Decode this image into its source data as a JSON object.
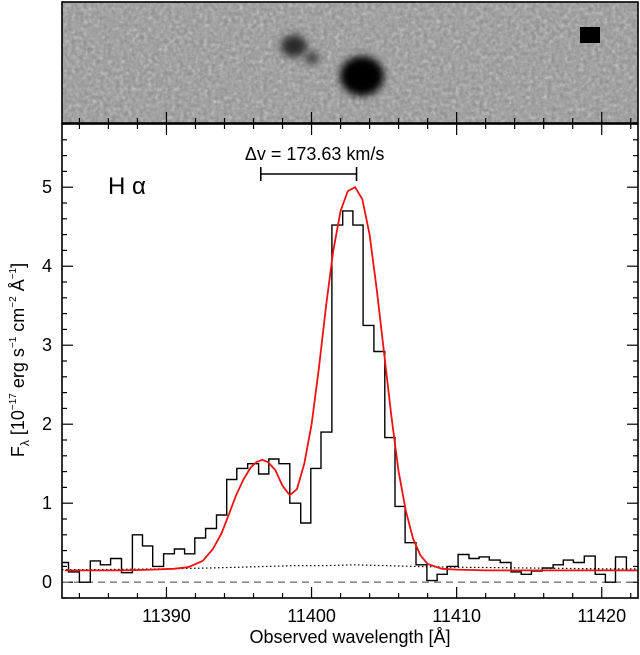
{
  "chart_data": {
    "type": "line",
    "ylabel_main": "F",
    "ylabel_sub": "λ",
    "ylabel_rest_1": " [10",
    "ylabel_exp_1": "−17",
    "ylabel_rest_2": " erg s",
    "ylabel_exp_2": "−1",
    "ylabel_rest_3": " cm",
    "ylabel_exp_3": "−2",
    "ylabel_rest_4": " Å",
    "ylabel_exp_4": "−1",
    "ylabel_rest_5": "]",
    "xlabel": "Observed wavelength [Å]",
    "line_label": "H α",
    "annotation": "Δv = 173.63 km/s",
    "annotation_span": [
      11396.5,
      11403.1
    ],
    "xlim": [
      11382.8,
      11422.5
    ],
    "ylim": [
      -0.2,
      5.8
    ],
    "x_ticks": [
      11390,
      11400,
      11410,
      11420
    ],
    "y_ticks": [
      0,
      1,
      2,
      3,
      4,
      5
    ],
    "x_minor_step": 2,
    "y_minor_step": 0.2,
    "zero_line": 0,
    "colors": {
      "data": "#000000",
      "model": "#ee1111",
      "error": "#000000",
      "zero": "#777777"
    },
    "series": [
      {
        "style": "steps",
        "x": [
          11382.9,
          11383.6,
          11384.4,
          11385.1,
          11385.8,
          11386.5,
          11387.3,
          11388.0,
          11388.7,
          11389.4,
          11390.2,
          11390.9,
          11391.6,
          11392.3,
          11393.1,
          11393.8,
          11394.5,
          11395.2,
          11396.0,
          11396.7,
          11397.4,
          11398.1,
          11398.9,
          11399.6,
          11400.3,
          11401.0,
          11401.8,
          11402.5,
          11403.2,
          11403.9,
          11404.7,
          11405.4,
          11406.1,
          11406.8,
          11407.6,
          11408.3,
          11409.0,
          11409.7,
          11410.5,
          11411.2,
          11411.9,
          11412.6,
          11413.4,
          11414.1,
          11414.8,
          11415.5,
          11416.3,
          11417.0,
          11417.7,
          11418.4,
          11419.2,
          11419.9,
          11420.6,
          11421.3,
          11422.1
        ],
        "y": [
          0.25,
          0.13,
          0.0,
          0.27,
          0.22,
          0.3,
          0.12,
          0.6,
          0.46,
          0.2,
          0.36,
          0.42,
          0.36,
          0.56,
          0.68,
          0.85,
          1.3,
          1.44,
          1.5,
          1.37,
          1.56,
          1.5,
          1.0,
          0.75,
          1.44,
          1.9,
          4.52,
          4.7,
          4.52,
          3.25,
          2.92,
          1.83,
          0.96,
          0.5,
          0.22,
          0.02,
          0.1,
          0.2,
          0.35,
          0.3,
          0.32,
          0.28,
          0.25,
          0.13,
          0.1,
          0.14,
          0.18,
          0.22,
          0.28,
          0.25,
          0.33,
          0.1,
          0.0,
          0.32,
          0.15
        ]
      },
      {
        "style": "model",
        "x": [
          11383.0,
          11385.0,
          11387.0,
          11389.0,
          11390.5,
          11391.5,
          11392.5,
          11393.2,
          11393.8,
          11394.3,
          11394.8,
          11395.3,
          11395.8,
          11396.2,
          11396.6,
          11397.0,
          11397.5,
          11398.0,
          11398.5,
          11399.0,
          11399.5,
          11400.0,
          11400.5,
          11401.0,
          11401.5,
          11402.0,
          11402.5,
          11403.0,
          11403.5,
          11404.0,
          11404.5,
          11405.0,
          11405.5,
          11406.0,
          11406.5,
          11407.0,
          11407.5,
          11408.0,
          11409.0,
          11410.0,
          11412.0,
          11415.0,
          11418.0,
          11422.5
        ],
        "y": [
          0.15,
          0.15,
          0.15,
          0.16,
          0.17,
          0.19,
          0.27,
          0.42,
          0.62,
          0.86,
          1.1,
          1.3,
          1.45,
          1.52,
          1.55,
          1.52,
          1.42,
          1.22,
          1.1,
          1.18,
          1.5,
          2.0,
          2.7,
          3.5,
          4.2,
          4.7,
          4.95,
          5.0,
          4.85,
          4.4,
          3.7,
          2.9,
          2.1,
          1.4,
          0.9,
          0.55,
          0.34,
          0.23,
          0.17,
          0.16,
          0.15,
          0.15,
          0.15,
          0.15
        ]
      },
      {
        "style": "error",
        "x": [
          11382.8,
          11385,
          11390,
          11393,
          11395,
          11397,
          11399,
          11401,
          11403,
          11405,
          11407,
          11410,
          11415,
          11420,
          11422.5
        ],
        "y": [
          0.16,
          0.16,
          0.17,
          0.18,
          0.19,
          0.2,
          0.21,
          0.21,
          0.22,
          0.21,
          0.2,
          0.19,
          0.18,
          0.17,
          0.17
        ]
      }
    ]
  }
}
